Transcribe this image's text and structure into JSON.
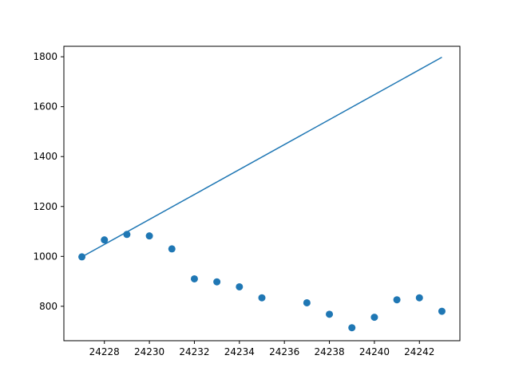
{
  "chart_data": {
    "type": "scatter",
    "title": "",
    "xlabel": "",
    "ylabel": "",
    "xlim": [
      24226.2,
      24243.8
    ],
    "ylim": [
      662,
      1842
    ],
    "xticks": [
      24228,
      24230,
      24232,
      24234,
      24236,
      24238,
      24240,
      24242
    ],
    "yticks": [
      800,
      1000,
      1200,
      1400,
      1600,
      1800
    ],
    "grid": false,
    "legend": "none",
    "series": [
      {
        "kind": "scatter",
        "color": "#1f77b4",
        "x": [
          24227,
          24228,
          24229,
          24230,
          24231,
          24232,
          24233,
          24234,
          24235,
          24237,
          24238,
          24239,
          24240,
          24241,
          24242,
          24243
        ],
        "y": [
          998,
          1066,
          1088,
          1082,
          1030,
          910,
          898,
          878,
          834,
          814,
          768,
          714,
          756,
          826,
          834,
          780
        ]
      },
      {
        "kind": "line",
        "color": "#1f77b4",
        "x": [
          24227,
          24243
        ],
        "y": [
          998,
          1798
        ]
      }
    ]
  }
}
